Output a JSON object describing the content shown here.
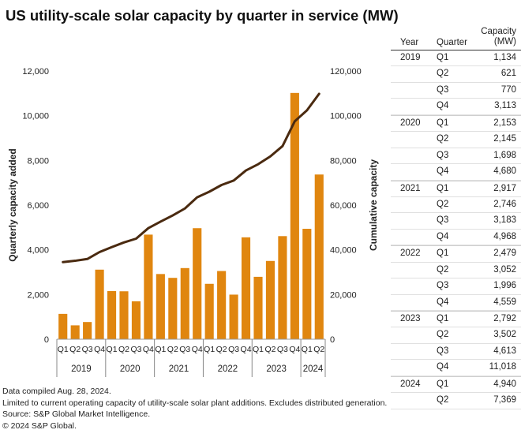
{
  "chart_data": {
    "type": "bar+line",
    "title": "US utility-scale solar capacity by quarter in service (MW)",
    "x_levels": [
      "Quarter",
      "Year"
    ],
    "quarters": [
      "Q1",
      "Q2",
      "Q3",
      "Q4",
      "Q1",
      "Q2",
      "Q3",
      "Q4",
      "Q1",
      "Q2",
      "Q3",
      "Q4",
      "Q1",
      "Q2",
      "Q3",
      "Q4",
      "Q1",
      "Q2",
      "Q3",
      "Q4",
      "Q1",
      "Q2"
    ],
    "years": [
      "2019",
      "2020",
      "2021",
      "2022",
      "2023",
      "2024"
    ],
    "year_quarter_counts": [
      4,
      4,
      4,
      4,
      4,
      2
    ],
    "series": [
      {
        "name": "Quarterly capacity added",
        "type": "bar",
        "axis": "left",
        "color": "#E0860F",
        "values": [
          1134,
          621,
          770,
          3113,
          2153,
          2145,
          1698,
          4680,
          2917,
          2746,
          3183,
          4968,
          2479,
          3052,
          1996,
          4559,
          2792,
          3502,
          4613,
          11018,
          4940,
          7369
        ]
      },
      {
        "name": "Cumulative capacity",
        "type": "line",
        "axis": "right",
        "color": "#4A2A10",
        "values": [
          34500,
          35100,
          35900,
          39000,
          41200,
          43300,
          45000,
          49700,
          52600,
          55400,
          58500,
          63500,
          66000,
          69000,
          71000,
          75500,
          78300,
          81800,
          86400,
          97500,
          102400,
          109800
        ]
      }
    ],
    "ylabel_left": "Quarterly capacity added",
    "ylabel_right": "Cumulative capacity",
    "ylim_left": [
      0,
      12000
    ],
    "ylim_right": [
      0,
      120000
    ],
    "yticks_left": [
      "0",
      "2,000",
      "4,000",
      "6,000",
      "8,000",
      "10,000",
      "12,000"
    ],
    "yticks_right": [
      "0",
      "20,000",
      "40,000",
      "60,000",
      "80,000",
      "100,000",
      "120,000"
    ],
    "grid": false,
    "legend": "none"
  },
  "table": {
    "headers": {
      "year": "Year",
      "quarter": "Quarter",
      "capacity": "Capacity (MW)"
    },
    "groups": [
      {
        "year": "2019",
        "rows": [
          {
            "q": "Q1",
            "v": "1,134"
          },
          {
            "q": "Q2",
            "v": "621"
          },
          {
            "q": "Q3",
            "v": "770"
          },
          {
            "q": "Q4",
            "v": "3,113"
          }
        ]
      },
      {
        "year": "2020",
        "rows": [
          {
            "q": "Q1",
            "v": "2,153"
          },
          {
            "q": "Q2",
            "v": "2,145"
          },
          {
            "q": "Q3",
            "v": "1,698"
          },
          {
            "q": "Q4",
            "v": "4,680"
          }
        ]
      },
      {
        "year": "2021",
        "rows": [
          {
            "q": "Q1",
            "v": "2,917"
          },
          {
            "q": "Q2",
            "v": "2,746"
          },
          {
            "q": "Q3",
            "v": "3,183"
          },
          {
            "q": "Q4",
            "v": "4,968"
          }
        ]
      },
      {
        "year": "2022",
        "rows": [
          {
            "q": "Q1",
            "v": "2,479"
          },
          {
            "q": "Q2",
            "v": "3,052"
          },
          {
            "q": "Q3",
            "v": "1,996"
          },
          {
            "q": "Q4",
            "v": "4,559"
          }
        ]
      },
      {
        "year": "2023",
        "rows": [
          {
            "q": "Q1",
            "v": "2,792"
          },
          {
            "q": "Q2",
            "v": "3,502"
          },
          {
            "q": "Q3",
            "v": "4,613"
          },
          {
            "q": "Q4",
            "v": "11,018"
          }
        ]
      },
      {
        "year": "2024",
        "rows": [
          {
            "q": "Q1",
            "v": "4,940"
          },
          {
            "q": "Q2",
            "v": "7,369"
          }
        ]
      }
    ]
  },
  "footer": [
    "Data compiled Aug. 28, 2024.",
    "Limited to current operating capacity of utility-scale solar plant additions. Excludes distributed generation.",
    "Source: S&P Global Market Intelligence.",
    "© 2024 S&P Global."
  ]
}
